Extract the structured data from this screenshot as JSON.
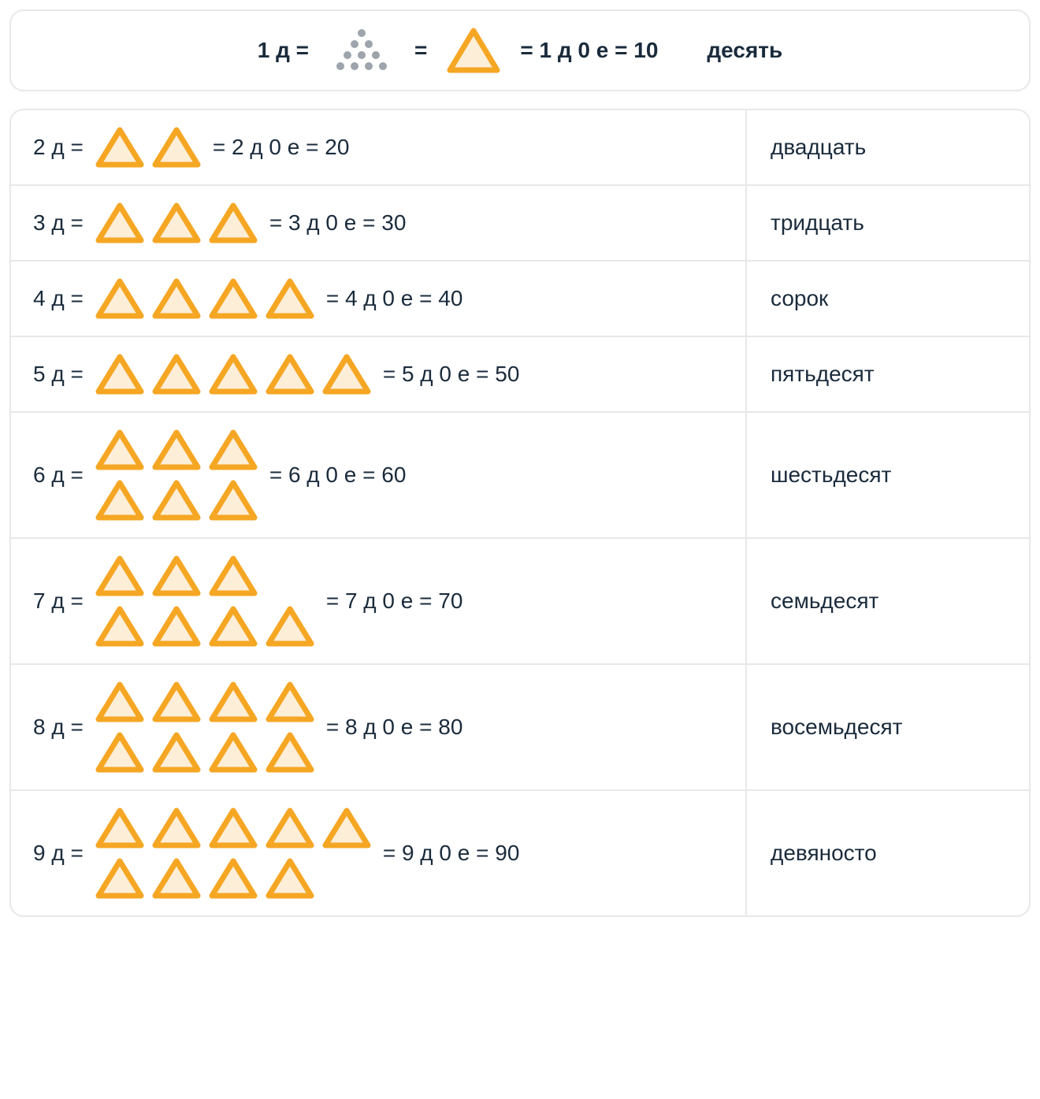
{
  "colors": {
    "triangle_stroke": "#f5a623",
    "triangle_fill": "#fdeed8",
    "dot_fill": "#9da4ab",
    "border": "#e6e8ea",
    "text": "#1a2b3c",
    "background": "#ffffff"
  },
  "triangle_style": {
    "small_width": 68,
    "small_height": 58,
    "large_width": 74,
    "large_height": 64,
    "stroke_width": 7
  },
  "dots_layout": {
    "rows": [
      1,
      2,
      3,
      4
    ],
    "radius": 5,
    "hgap": 18,
    "vgap": 14,
    "width": 90,
    "height": 62
  },
  "header": {
    "left": "1 д  =",
    "mid1": "=",
    "mid2": "=  1 д 0 е = 10",
    "word": "десять"
  },
  "rows": [
    {
      "n": 2,
      "prefix": "2 д =",
      "suffix": "= 2 д 0 е = 20",
      "word": "двадцать",
      "layout": [
        [
          2
        ]
      ]
    },
    {
      "n": 3,
      "prefix": "3 д =",
      "suffix": "= 3 д 0 е = 30",
      "word": "тридцать",
      "layout": [
        [
          3
        ]
      ]
    },
    {
      "n": 4,
      "prefix": "4 д =",
      "suffix": "= 4 д 0 е = 40",
      "word": "сорок",
      "layout": [
        [
          4
        ]
      ]
    },
    {
      "n": 5,
      "prefix": "5 д =",
      "suffix": "= 5 д 0 е = 50",
      "word": "пятьдесят",
      "layout": [
        [
          5
        ]
      ]
    },
    {
      "n": 6,
      "prefix": "6 д =",
      "suffix": "= 6 д 0 е = 60",
      "word": "шестьдесят",
      "layout": [
        [
          3
        ],
        [
          3
        ]
      ]
    },
    {
      "n": 7,
      "prefix": "7 д =",
      "suffix": "= 7 д 0 е = 70",
      "word": "семьдесят",
      "layout": [
        [
          3
        ],
        [
          4
        ]
      ]
    },
    {
      "n": 8,
      "prefix": "8 д =",
      "suffix": "= 8 д 0 е = 80",
      "word": "восемьдесят",
      "layout": [
        [
          4
        ],
        [
          4
        ]
      ]
    },
    {
      "n": 9,
      "prefix": "9 д =",
      "suffix": "= 9 д 0 е = 90",
      "word": "девяносто",
      "layout": [
        [
          5
        ],
        [
          4
        ]
      ]
    }
  ]
}
